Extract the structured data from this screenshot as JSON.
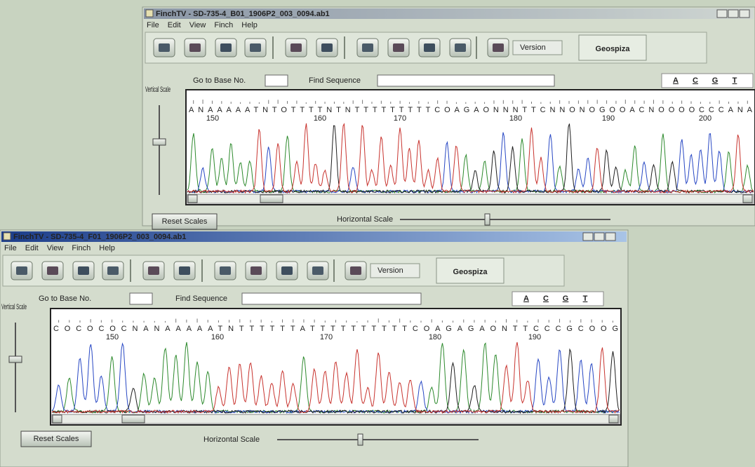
{
  "windows": [
    {
      "title": "FinchTV - SD-735-4_B01_1906P2_003_0094.ab1",
      "menu": [
        "File",
        "Edit",
        "View",
        "Finch",
        "Help"
      ],
      "version": "Version",
      "brand": "Geospiza",
      "go_to_base": "Go to Base No.",
      "find_sequence": "Find Sequence",
      "bases": [
        "A",
        "C",
        "G",
        "T"
      ],
      "vertical_scale": "Vertical Scale",
      "sequence": "ANAAAAATNTOTTTTNTNTTTTTTTTTCOAGAONNNTTCNNONOGOOACNOOOOCCCANA",
      "positions": [
        150,
        160,
        170,
        180,
        190,
        200
      ],
      "reset": "Reset Scales",
      "horizontal_scale": "Horizontal Scale"
    },
    {
      "title": "FinchTV - SD-735-4_F01_1906P2_003_0094.ab1",
      "menu": [
        "File",
        "Edit",
        "View",
        "Finch",
        "Help"
      ],
      "version": "Version",
      "brand": "Geospiza",
      "go_to_base": "Go to Base No.",
      "find_sequence": "Find Sequence",
      "bases": [
        "A",
        "C",
        "G",
        "T"
      ],
      "vertical_scale": "Vertical Scale",
      "sequence": "COCOCOCNANAAAAATNTTTTTTATTTTTTTTTTCOAGAGAONTTCCCGCOOG",
      "positions": [
        150,
        160,
        170,
        180,
        190
      ],
      "reset": "Reset Scales",
      "horizontal_scale": "Horizontal Scale"
    }
  ]
}
